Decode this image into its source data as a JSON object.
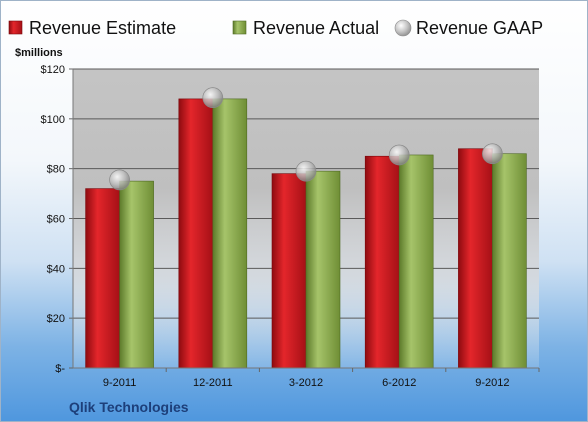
{
  "chart_data": {
    "type": "bar",
    "categories": [
      "9-2011",
      "12-2011",
      "3-2012",
      "6-2012",
      "9-2012"
    ],
    "series": [
      {
        "name": "Revenue Estimate",
        "kind": "bar",
        "color": "#c0161c",
        "values": [
          72,
          108,
          78,
          85,
          88
        ]
      },
      {
        "name": "Revenue Actual",
        "kind": "bar",
        "color": "#86a849",
        "values": [
          75,
          108,
          79,
          85.5,
          86
        ]
      },
      {
        "name": "Revenue GAAP",
        "kind": "marker",
        "color": "#b9b9b9",
        "values": [
          75.5,
          108.5,
          79,
          85.5,
          86
        ]
      }
    ],
    "ylabel": "$millions",
    "ylim": [
      0,
      120
    ],
    "yticks": [
      0,
      20,
      40,
      60,
      80,
      100,
      120
    ],
    "ytick_labels": [
      "$-",
      "$20",
      "$40",
      "$60",
      "$80",
      "$100",
      "$120"
    ],
    "grid": true,
    "legend_position": "top",
    "footer": "Qlik Technologies",
    "background_colors": {
      "plot_area": "#c0c0c0",
      "gridline": "#5a5a5a"
    }
  }
}
